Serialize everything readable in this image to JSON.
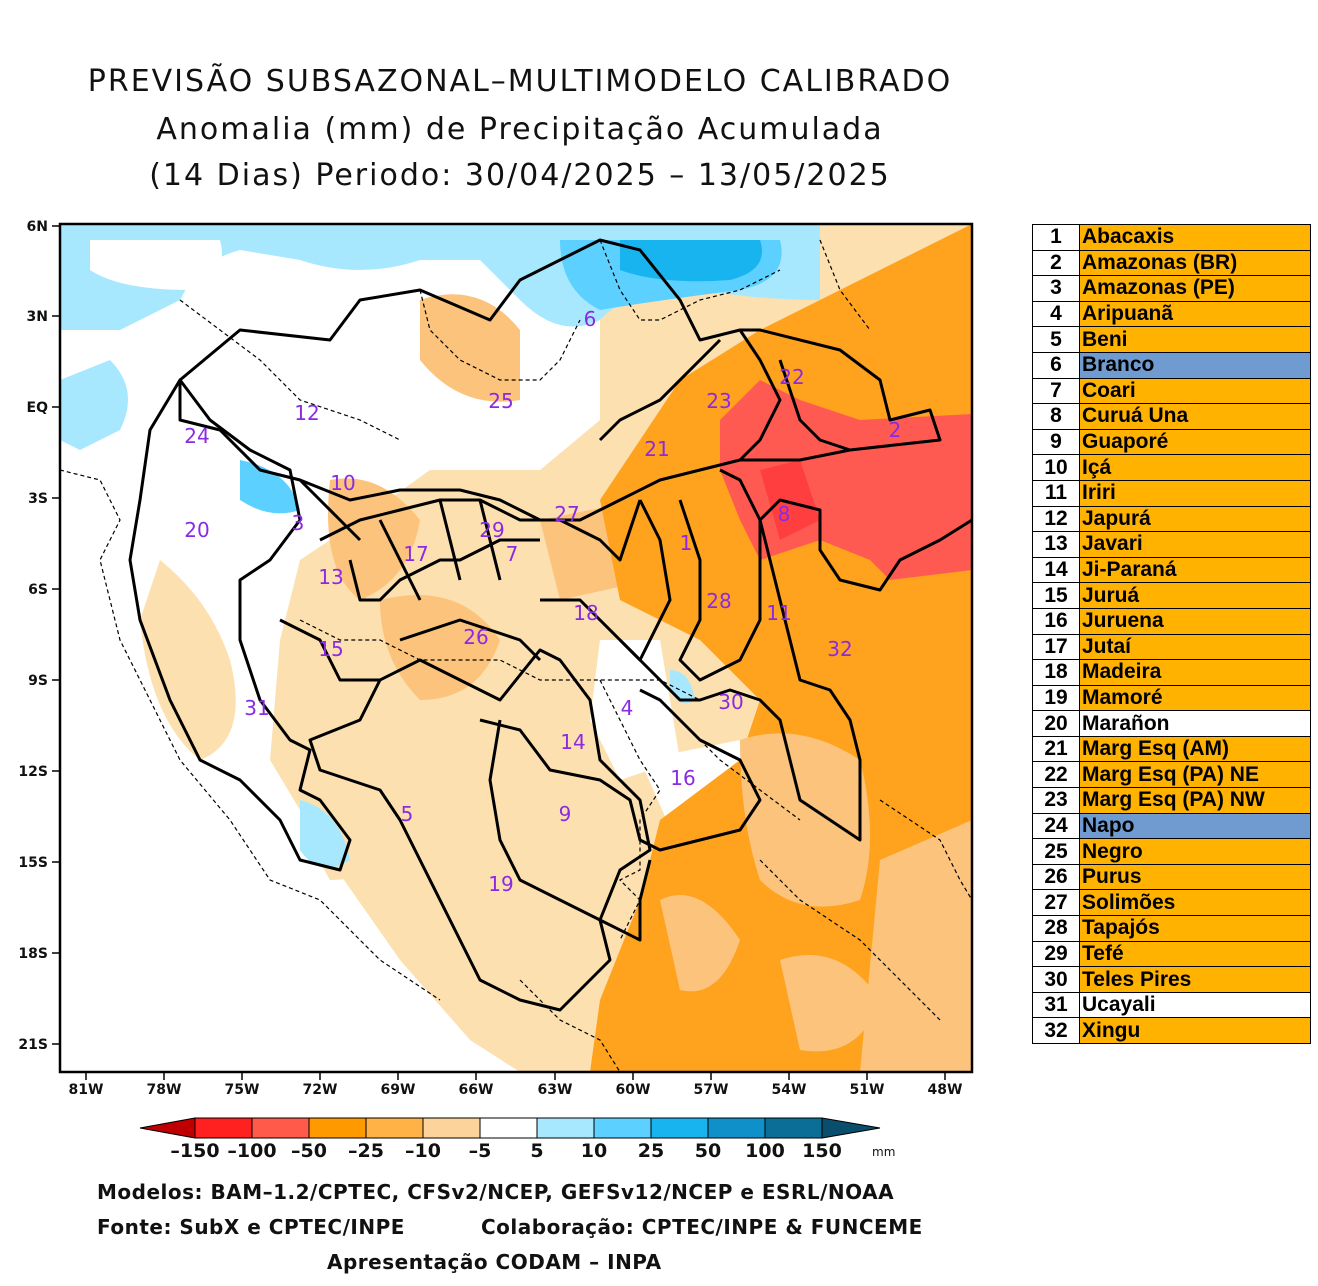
{
  "title": {
    "line1": "PREVISÃO SUBSAZONAL–MULTIMODELO CALIBRADO",
    "line2": "Anomalia (mm) de Precipitação Acumulada",
    "line3": "(14 Dias) Periodo: 30/04/2025 – 13/05/2025"
  },
  "axes": {
    "lat_labels": [
      "6N",
      "3N",
      "EQ",
      "3S",
      "6S",
      "9S",
      "12S",
      "15S",
      "18S",
      "21S"
    ],
    "lon_labels": [
      "81W",
      "78W",
      "75W",
      "72W",
      "69W",
      "66W",
      "63W",
      "60W",
      "57W",
      "54W",
      "51W",
      "48W"
    ]
  },
  "colorbar": {
    "ticks": [
      "–150",
      "–100",
      "–50",
      "–25",
      "–10",
      "–5",
      "5",
      "10",
      "25",
      "50",
      "100",
      "150"
    ],
    "unit": "mm",
    "colors": [
      "#c00000",
      "#ff2020",
      "#ff5a4a",
      "#ff9900",
      "#ffb347",
      "#fcd39a",
      "#ffffff",
      "#a8e8ff",
      "#5cd0ff",
      "#18b4f0",
      "#1090c8",
      "#0a6e96",
      "#0a4e6e"
    ]
  },
  "map_labels": [
    {
      "id": "1"
    },
    {
      "id": "2"
    },
    {
      "id": "3"
    },
    {
      "id": "4"
    },
    {
      "id": "5"
    },
    {
      "id": "6"
    },
    {
      "id": "7"
    },
    {
      "id": "8"
    },
    {
      "id": "9"
    },
    {
      "id": "10"
    },
    {
      "id": "11"
    },
    {
      "id": "12"
    },
    {
      "id": "13"
    },
    {
      "id": "14"
    },
    {
      "id": "15"
    },
    {
      "id": "16"
    },
    {
      "id": "17"
    },
    {
      "id": "18"
    },
    {
      "id": "19"
    },
    {
      "id": "20"
    },
    {
      "id": "21"
    },
    {
      "id": "22"
    },
    {
      "id": "23"
    },
    {
      "id": "24"
    },
    {
      "id": "25"
    },
    {
      "id": "26"
    },
    {
      "id": "27"
    },
    {
      "id": "28"
    },
    {
      "id": "29"
    },
    {
      "id": "30"
    },
    {
      "id": "31"
    },
    {
      "id": "32"
    }
  ],
  "legend": [
    {
      "num": "1",
      "name": "Abacaxis",
      "color": "#ffb300"
    },
    {
      "num": "2",
      "name": "Amazonas (BR)",
      "color": "#ffb300"
    },
    {
      "num": "3",
      "name": "Amazonas (PE)",
      "color": "#ffb300"
    },
    {
      "num": "4",
      "name": "Aripuanã",
      "color": "#ffb300"
    },
    {
      "num": "5",
      "name": "Beni",
      "color": "#ffb300"
    },
    {
      "num": "6",
      "name": "Branco",
      "color": "#6f9bd1"
    },
    {
      "num": "7",
      "name": "Coari",
      "color": "#ffb300"
    },
    {
      "num": "8",
      "name": "Curuá Una",
      "color": "#ffb300"
    },
    {
      "num": "9",
      "name": "Guaporé",
      "color": "#ffb300"
    },
    {
      "num": "10",
      "name": "Içá",
      "color": "#ffb300"
    },
    {
      "num": "11",
      "name": "Iriri",
      "color": "#ffb300"
    },
    {
      "num": "12",
      "name": "Japurá",
      "color": "#ffb300"
    },
    {
      "num": "13",
      "name": "Javari",
      "color": "#ffb300"
    },
    {
      "num": "14",
      "name": "Ji-Paraná",
      "color": "#ffb300"
    },
    {
      "num": "15",
      "name": "Juruá",
      "color": "#ffb300"
    },
    {
      "num": "16",
      "name": "Juruena",
      "color": "#ffb300"
    },
    {
      "num": "17",
      "name": "Jutaí",
      "color": "#ffb300"
    },
    {
      "num": "18",
      "name": "Madeira",
      "color": "#ffb300"
    },
    {
      "num": "19",
      "name": "Mamoré",
      "color": "#ffb300"
    },
    {
      "num": "20",
      "name": "Marañon",
      "color": "#ffffff"
    },
    {
      "num": "21",
      "name": "Marg Esq (AM)",
      "color": "#ffb300"
    },
    {
      "num": "22",
      "name": "Marg Esq (PA) NE",
      "color": "#ffb300"
    },
    {
      "num": "23",
      "name": "Marg Esq (PA) NW",
      "color": "#ffb300"
    },
    {
      "num": "24",
      "name": "Napo",
      "color": "#6f9bd1"
    },
    {
      "num": "25",
      "name": "Negro",
      "color": "#ffb300"
    },
    {
      "num": "26",
      "name": "Purus",
      "color": "#ffb300"
    },
    {
      "num": "27",
      "name": "Solimões",
      "color": "#ffb300"
    },
    {
      "num": "28",
      "name": "Tapajós",
      "color": "#ffb300"
    },
    {
      "num": "29",
      "name": "Tefé",
      "color": "#ffb300"
    },
    {
      "num": "30",
      "name": "Teles Pires",
      "color": "#ffb300"
    },
    {
      "num": "31",
      "name": "Ucayali",
      "color": "#ffffff"
    },
    {
      "num": "32",
      "name": "Xingu",
      "color": "#ffb300"
    }
  ],
  "footer": {
    "models": "Modelos: BAM–1.2/CPTEC, CFSv2/NCEP, GEFSv12/NCEP e ESRL/NOAA",
    "source": "Fonte: SubX e CPTEC/INPE",
    "collab": "Colaboração: CPTEC/INPE & FUNCEME",
    "presentation": "Apresentação CODAM – INPA"
  }
}
